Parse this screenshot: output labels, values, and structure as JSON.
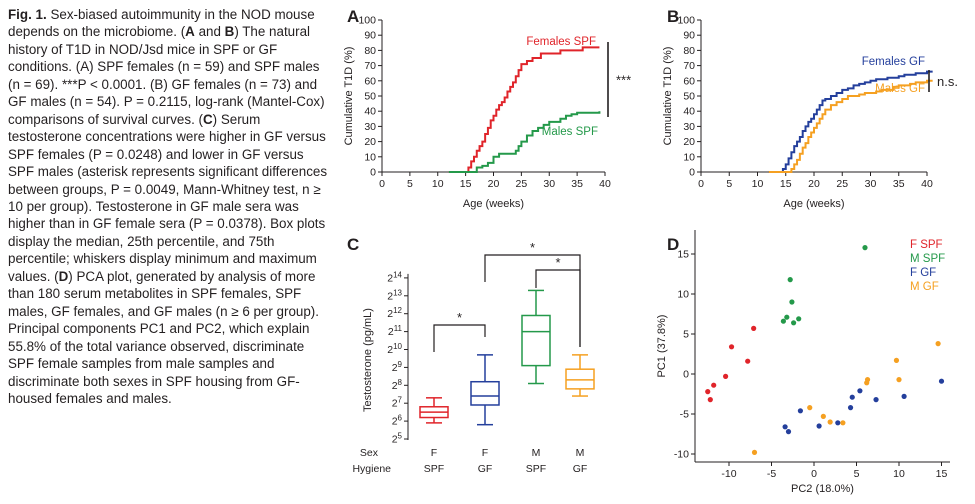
{
  "caption": {
    "fig_label": "Fig. 1.",
    "title": "Sex-biased autoimmunity in the NOD mouse depends on the microbiome.",
    "ab_intro": "The natural history of T1D in NOD/Jsd mice in SPF or GF conditions. (A) SPF females (n = 59) and SPF males (n = 69). ***P < 0.0001. (B) GF females (n = 73) and GF males (n = 54). P = 0.2115, log-rank (Mantel-Cox) comparisons of survival curves.",
    "c_text": "Serum testosterone concentrations were higher in GF versus SPF females (P = 0.0248) and lower in GF versus SPF males (asterisk represents significant differences between groups, P = 0.0049, Mann-Whitney test, n ≥ 10 per group). Testosterone in GF male sera was higher than in GF female sera (P = 0.0378). Box plots display the median, 25th percentile, and 75th percentile; whiskers display minimum and maximum values.",
    "d_text": "PCA plot, generated by analysis of more than 180 serum metabolites in SPF females, SPF males, GF females, and GF males (n ≥ 6 per group). Principal components PC1 and PC2, which explain 55.8% of the total variance observed, discriminate SPF female samples from male samples and discriminate both sexes in SPF housing from GF-housed females and males."
  },
  "colors": {
    "red": "#e0242a",
    "green": "#24994a",
    "blue": "#243f9c",
    "orange": "#f5a021",
    "text": "#231f20"
  },
  "chart_data": [
    {
      "panel": "A",
      "type": "line",
      "xlabel": "Age (weeks)",
      "ylabel": "Cumulative T1D (%)",
      "xlim": [
        0,
        40
      ],
      "ylim": [
        0,
        100
      ],
      "xticks": [
        0,
        5,
        10,
        15,
        20,
        25,
        30,
        35,
        40
      ],
      "yticks": [
        0,
        10,
        20,
        30,
        40,
        50,
        60,
        70,
        80,
        90,
        100
      ],
      "significance": "***",
      "series": [
        {
          "name": "Females SPF",
          "color": "red",
          "points": [
            [
              12,
              0
            ],
            [
              15,
              0
            ],
            [
              15.5,
              3
            ],
            [
              16,
              7
            ],
            [
              16.5,
              10
            ],
            [
              17,
              14
            ],
            [
              17.5,
              17
            ],
            [
              18,
              20
            ],
            [
              18.5,
              25
            ],
            [
              19,
              29
            ],
            [
              19.5,
              34
            ],
            [
              20,
              37
            ],
            [
              20.5,
              41
            ],
            [
              21,
              44
            ],
            [
              21.5,
              46
            ],
            [
              22,
              49
            ],
            [
              22.5,
              53
            ],
            [
              23,
              56
            ],
            [
              23.5,
              59
            ],
            [
              24,
              63
            ],
            [
              24.5,
              67
            ],
            [
              25,
              71
            ],
            [
              26,
              73
            ],
            [
              27,
              75
            ],
            [
              28,
              75
            ],
            [
              28.5,
              78
            ],
            [
              30,
              78
            ],
            [
              31,
              78
            ],
            [
              32,
              80
            ],
            [
              35,
              80
            ],
            [
              36,
              82
            ],
            [
              38,
              82
            ],
            [
              39,
              82
            ]
          ]
        },
        {
          "name": "Males SPF",
          "color": "green",
          "points": [
            [
              12,
              0
            ],
            [
              16,
              0
            ],
            [
              17,
              3
            ],
            [
              18,
              4
            ],
            [
              19,
              6
            ],
            [
              20,
              10
            ],
            [
              21,
              12
            ],
            [
              22,
              12
            ],
            [
              23,
              12
            ],
            [
              24,
              14
            ],
            [
              24.5,
              17
            ],
            [
              25,
              20
            ],
            [
              26,
              24
            ],
            [
              27,
              27
            ],
            [
              28,
              29
            ],
            [
              29,
              31
            ],
            [
              30,
              33
            ],
            [
              31,
              33
            ],
            [
              32,
              35
            ],
            [
              33,
              37
            ],
            [
              34,
              38
            ],
            [
              35,
              39
            ],
            [
              38,
              39
            ],
            [
              39,
              40
            ]
          ]
        }
      ]
    },
    {
      "panel": "B",
      "type": "line",
      "xlabel": "Age (weeks)",
      "ylabel": "Cumulative T1D (%)",
      "xlim": [
        0,
        40
      ],
      "ylim": [
        0,
        100
      ],
      "xticks": [
        0,
        5,
        10,
        15,
        20,
        25,
        30,
        35,
        40
      ],
      "yticks": [
        0,
        10,
        20,
        30,
        40,
        50,
        60,
        70,
        80,
        90,
        100
      ],
      "significance": "n.s.",
      "series": [
        {
          "name": "Females GF",
          "color": "blue",
          "points": [
            [
              12,
              0
            ],
            [
              14,
              0
            ],
            [
              14.5,
              2
            ],
            [
              15,
              5
            ],
            [
              15.5,
              9
            ],
            [
              16,
              13
            ],
            [
              16.5,
              17
            ],
            [
              17,
              20
            ],
            [
              17.5,
              23
            ],
            [
              18,
              27
            ],
            [
              18.5,
              30
            ],
            [
              19,
              33
            ],
            [
              19.5,
              35
            ],
            [
              20,
              38
            ],
            [
              20.5,
              41
            ],
            [
              21,
              44
            ],
            [
              21.5,
              47
            ],
            [
              22,
              48
            ],
            [
              23,
              50
            ],
            [
              24,
              52
            ],
            [
              25,
              54
            ],
            [
              26,
              55
            ],
            [
              27,
              57
            ],
            [
              28,
              58
            ],
            [
              29,
              59
            ],
            [
              30,
              60
            ],
            [
              31,
              61
            ],
            [
              32,
              61
            ],
            [
              33,
              62
            ],
            [
              35,
              63
            ],
            [
              36,
              64
            ],
            [
              37,
              64
            ],
            [
              38,
              65
            ],
            [
              40,
              66
            ],
            [
              41,
              66
            ]
          ]
        },
        {
          "name": "Males GF",
          "color": "orange",
          "points": [
            [
              12,
              0
            ],
            [
              15,
              0
            ],
            [
              16,
              2
            ],
            [
              16.5,
              5
            ],
            [
              17,
              8
            ],
            [
              17.5,
              12
            ],
            [
              18,
              16
            ],
            [
              18.5,
              19
            ],
            [
              19,
              23
            ],
            [
              19.5,
              26
            ],
            [
              20,
              29
            ],
            [
              20.5,
              32
            ],
            [
              21,
              35
            ],
            [
              21.5,
              38
            ],
            [
              22,
              41
            ],
            [
              23,
              44
            ],
            [
              24,
              46
            ],
            [
              25,
              48
            ],
            [
              26,
              50
            ],
            [
              27,
              50
            ],
            [
              28,
              51
            ],
            [
              29,
              52
            ],
            [
              30,
              52
            ],
            [
              31,
              53
            ],
            [
              32,
              54
            ],
            [
              33,
              54
            ],
            [
              34,
              56
            ],
            [
              35,
              57
            ],
            [
              36,
              57
            ],
            [
              37,
              58
            ],
            [
              38,
              59
            ],
            [
              40,
              60
            ],
            [
              41,
              60
            ]
          ]
        }
      ]
    },
    {
      "panel": "C",
      "type": "box",
      "ylabel": "Testosterone (pg/mL)",
      "yaxis_log2_exponents": [
        5,
        6,
        7,
        8,
        9,
        10,
        11,
        12,
        13,
        14
      ],
      "row_labels": {
        "sex": "Sex",
        "hygiene": "Hygiene"
      },
      "groups": [
        {
          "sex": "F",
          "hygiene": "SPF",
          "color": "red",
          "min": 5.9,
          "q1": 6.2,
          "median": 6.5,
          "q3": 6.8,
          "max": 7.3
        },
        {
          "sex": "F",
          "hygiene": "GF",
          "color": "blue",
          "min": 5.8,
          "q1": 6.9,
          "median": 7.4,
          "q3": 8.2,
          "max": 9.7
        },
        {
          "sex": "M",
          "hygiene": "SPF",
          "color": "green",
          "min": 8.1,
          "q1": 9.1,
          "median": 11.0,
          "q3": 11.9,
          "max": 13.3
        },
        {
          "sex": "M",
          "hygiene": "GF",
          "color": "orange",
          "min": 7.4,
          "q1": 7.8,
          "median": 8.3,
          "q3": 8.9,
          "max": 9.7
        }
      ],
      "comparisons": [
        {
          "between": [
            0,
            1
          ],
          "label": "*"
        },
        {
          "between": [
            1,
            3
          ],
          "label": "*"
        },
        {
          "between": [
            2,
            3
          ],
          "label": "*"
        }
      ]
    },
    {
      "panel": "D",
      "type": "scatter",
      "xlabel": "PC2 (18.0%)",
      "ylabel": "PC1 (37.8%)",
      "xlim": [
        -14,
        16
      ],
      "ylim": [
        -11,
        18
      ],
      "xticks": [
        -10,
        -5,
        0,
        5,
        10,
        15
      ],
      "yticks": [
        -10,
        -5,
        0,
        5,
        10,
        15
      ],
      "legend_position": "top-right",
      "series": [
        {
          "name": "F SPF",
          "color": "red",
          "points": [
            [
              -12.5,
              -2.2
            ],
            [
              -12.2,
              -3.2
            ],
            [
              -11.8,
              -1.4
            ],
            [
              -10.4,
              -0.3
            ],
            [
              -9.7,
              3.4
            ],
            [
              -7.8,
              1.6
            ],
            [
              -7.1,
              5.7
            ]
          ]
        },
        {
          "name": "M SPF",
          "color": "green",
          "points": [
            [
              -3.6,
              6.6
            ],
            [
              -3.2,
              7.1
            ],
            [
              -2.8,
              11.8
            ],
            [
              -2.6,
              9.0
            ],
            [
              -2.4,
              6.4
            ],
            [
              -1.8,
              6.9
            ],
            [
              6.0,
              15.8
            ]
          ]
        },
        {
          "name": "F GF",
          "color": "blue",
          "points": [
            [
              -3.4,
              -6.6
            ],
            [
              -3.0,
              -7.2
            ],
            [
              -1.6,
              -4.6
            ],
            [
              0.6,
              -6.5
            ],
            [
              2.8,
              -6.1
            ],
            [
              4.3,
              -4.2
            ],
            [
              4.5,
              -2.9
            ],
            [
              5.4,
              -2.1
            ],
            [
              7.3,
              -3.2
            ],
            [
              10.6,
              -2.8
            ],
            [
              15.0,
              -0.9
            ]
          ]
        },
        {
          "name": "M GF",
          "color": "orange",
          "points": [
            [
              -7.0,
              -9.8
            ],
            [
              -0.5,
              -4.2
            ],
            [
              1.1,
              -5.3
            ],
            [
              1.9,
              -6.0
            ],
            [
              3.4,
              -6.1
            ],
            [
              6.2,
              -1.1
            ],
            [
              6.3,
              -0.7
            ],
            [
              9.7,
              1.7
            ],
            [
              10.0,
              -0.7
            ],
            [
              14.6,
              3.8
            ]
          ]
        }
      ]
    }
  ]
}
